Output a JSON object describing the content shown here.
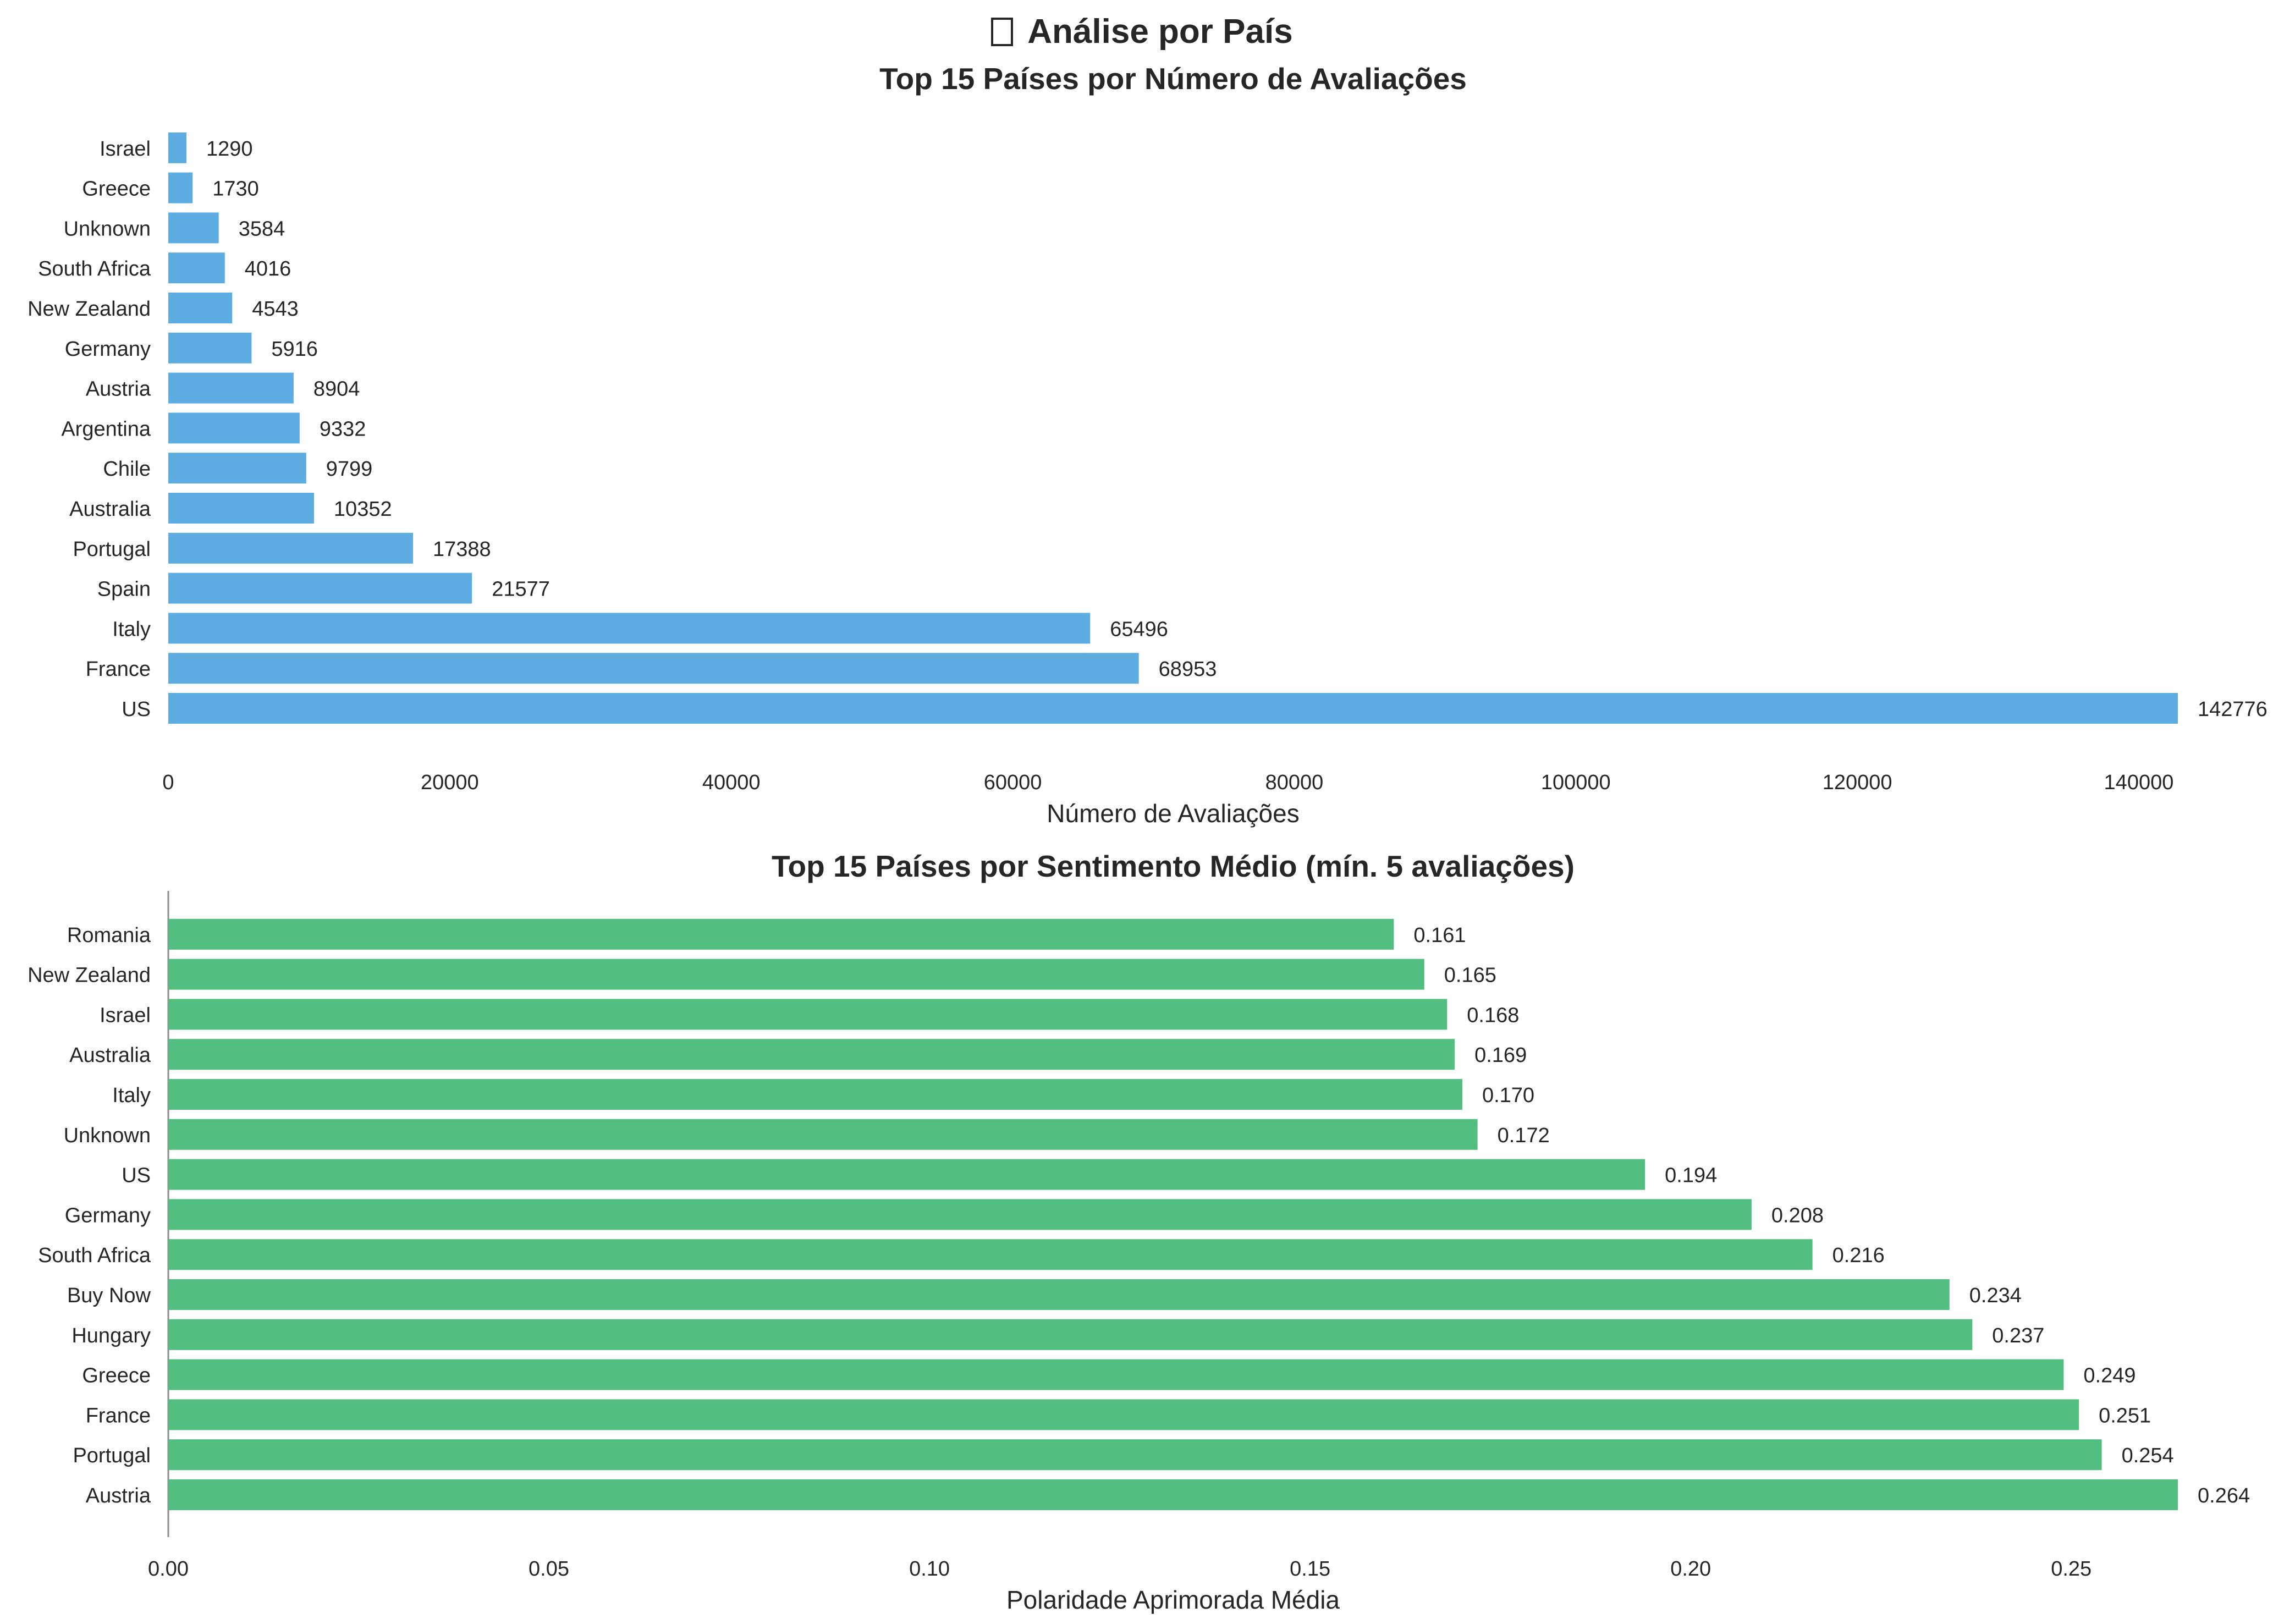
{
  "figure": {
    "suptitle": "Análise por País"
  },
  "chart_data": [
    {
      "type": "bar",
      "orientation": "horizontal",
      "title": "Top 15 Países por Número de Avaliações",
      "xlabel": "Número de Avaliações",
      "ylabel": "",
      "categories": [
        "US",
        "France",
        "Italy",
        "Spain",
        "Portugal",
        "Australia",
        "Chile",
        "Argentina",
        "Austria",
        "Germany",
        "New Zealand",
        "South Africa",
        "Unknown",
        "Greece",
        "Israel"
      ],
      "values": [
        142776,
        68953,
        65496,
        21577,
        17388,
        10352,
        9799,
        9332,
        8904,
        5916,
        4543,
        4016,
        3584,
        1730,
        1290
      ],
      "value_labels": [
        "142776",
        "68953",
        "65496",
        "21577",
        "17388",
        "10352",
        "9799",
        "9332",
        "8904",
        "5916",
        "4543",
        "4016",
        "3584",
        "1730",
        "1290"
      ],
      "xlim": [
        0,
        142776
      ],
      "xticks": [
        0,
        20000,
        40000,
        60000,
        80000,
        100000,
        120000,
        140000
      ],
      "xtick_labels": [
        "0",
        "20000",
        "40000",
        "60000",
        "80000",
        "100000",
        "120000",
        "140000"
      ],
      "color": "#5dade2",
      "grid": false,
      "left_spine": false
    },
    {
      "type": "bar",
      "orientation": "horizontal",
      "title": "Top 15 Países por Sentimento Médio (mín. 5 avaliações)",
      "xlabel": "Polaridade Aprimorada Média",
      "ylabel": "",
      "categories": [
        "Austria",
        "Portugal",
        "France",
        "Greece",
        "Hungary",
        "Buy Now",
        "South Africa",
        "Germany",
        "US",
        "Unknown",
        "Italy",
        "Australia",
        "Israel",
        "New Zealand",
        "Romania"
      ],
      "values": [
        0.264,
        0.254,
        0.251,
        0.249,
        0.237,
        0.234,
        0.216,
        0.208,
        0.194,
        0.172,
        0.17,
        0.169,
        0.168,
        0.165,
        0.161
      ],
      "value_labels": [
        "0.264",
        "0.254",
        "0.251",
        "0.249",
        "0.237",
        "0.234",
        "0.216",
        "0.208",
        "0.194",
        "0.172",
        "0.170",
        "0.169",
        "0.168",
        "0.165",
        "0.161"
      ],
      "xlim": [
        0,
        0.264
      ],
      "xticks": [
        0,
        0.05,
        0.1,
        0.15,
        0.2,
        0.25
      ],
      "xtick_labels": [
        "0.00",
        "0.05",
        "0.10",
        "0.15",
        "0.20",
        "0.25"
      ],
      "color": "#52be80",
      "grid": false,
      "left_spine": true
    }
  ]
}
